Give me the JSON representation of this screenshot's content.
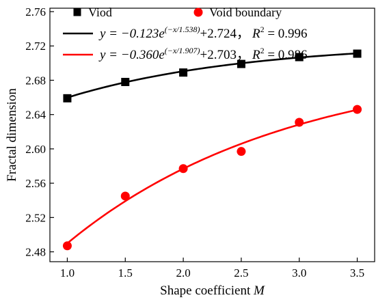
{
  "chart_data": {
    "type": "scatter",
    "xlabel": "Shape coefficient",
    "xlabel_var": "M",
    "ylabel": "Fractal dimension",
    "xlim": [
      0.85,
      3.65
    ],
    "ylim": [
      2.4685,
      2.764
    ],
    "x_ticks": [
      "1.0",
      "1.5",
      "2.0",
      "2.5",
      "3.0",
      "3.5"
    ],
    "y_ticks": [
      "2.48",
      "2.52",
      "2.56",
      "2.60",
      "2.64",
      "2.68",
      "2.72",
      "2.76"
    ],
    "grid": false,
    "legend_position": "top",
    "series": [
      {
        "name": "Viod",
        "marker": "square",
        "color": "#000000",
        "x": [
          1.0,
          1.5,
          2.0,
          2.5,
          3.0,
          3.5
        ],
        "y": [
          2.659,
          2.678,
          2.689,
          2.699,
          2.707,
          2.711
        ],
        "fit": {
          "a": -0.123,
          "t": 1.538,
          "c": 2.724,
          "eq_prefix": "y = −0.123e",
          "eq_exp": "(−x/1.538)",
          "eq_suffix": "+2.724，",
          "r2_label": "R",
          "r2_value": " = 0.996"
        }
      },
      {
        "name": "Void boundary",
        "marker": "circle",
        "color": "#ff0000",
        "x": [
          1.0,
          1.5,
          2.0,
          2.5,
          3.0,
          3.5
        ],
        "y": [
          2.487,
          2.545,
          2.577,
          2.597,
          2.631,
          2.646
        ],
        "fit": {
          "a": -0.36,
          "t": 1.907,
          "c": 2.703,
          "eq_prefix": "y = −0.360e",
          "eq_exp": "(−x/1.907)",
          "eq_suffix": "+2.703，",
          "r2_label": "R",
          "r2_value": " = 0.986"
        }
      }
    ]
  }
}
